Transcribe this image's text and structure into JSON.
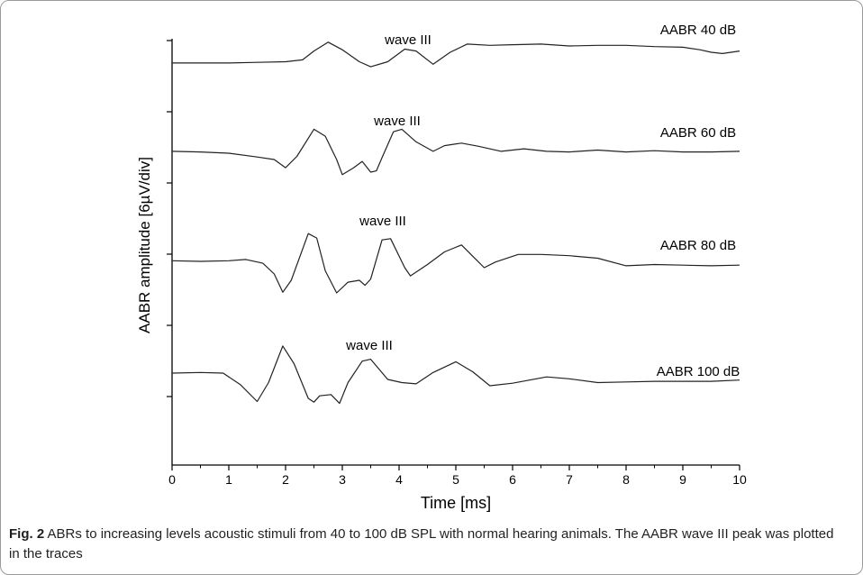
{
  "chart_data": {
    "type": "line",
    "xlabel": "Time [ms]",
    "ylabel": "AABR amplitude [6µV/div]",
    "xlim": [
      0,
      10
    ],
    "xticks": [
      "0",
      "1",
      "2",
      "3",
      "4",
      "5",
      "6",
      "7",
      "8",
      "9",
      "10"
    ],
    "grid": false,
    "legend": "none",
    "line_color": "#222222",
    "series": [
      {
        "name": "AABR 40 dB",
        "annotation": "wave III",
        "points": [
          [
            0,
            0.3
          ],
          [
            0.5,
            0.3
          ],
          [
            1,
            0.3
          ],
          [
            1.5,
            0.4
          ],
          [
            2,
            0.5
          ],
          [
            2.3,
            0.8
          ],
          [
            2.5,
            2.2
          ],
          [
            2.75,
            3.6
          ],
          [
            3,
            2.4
          ],
          [
            3.3,
            0.5
          ],
          [
            3.5,
            -0.3
          ],
          [
            3.8,
            0.5
          ],
          [
            4.1,
            2.5
          ],
          [
            4.3,
            2.2
          ],
          [
            4.6,
            0.1
          ],
          [
            4.9,
            2.0
          ],
          [
            5.2,
            3.3
          ],
          [
            5.6,
            3.1
          ],
          [
            6,
            3.2
          ],
          [
            6.5,
            3.3
          ],
          [
            7,
            3.0
          ],
          [
            7.5,
            3.1
          ],
          [
            8,
            3.1
          ],
          [
            8.5,
            2.9
          ],
          [
            9,
            2.8
          ],
          [
            9.3,
            2.4
          ],
          [
            9.5,
            2.0
          ],
          [
            9.7,
            1.8
          ],
          [
            10,
            2.2
          ]
        ]
      },
      {
        "name": "AABR 60 dB",
        "annotation": "wave III",
        "points": [
          [
            0,
            0.3
          ],
          [
            0.5,
            0.2
          ],
          [
            1,
            0
          ],
          [
            1.5,
            -0.6
          ],
          [
            1.8,
            -1.0
          ],
          [
            2.0,
            -2.3
          ],
          [
            2.2,
            -0.5
          ],
          [
            2.5,
            3.8
          ],
          [
            2.7,
            2.7
          ],
          [
            2.9,
            -1.0
          ],
          [
            3.0,
            -3.4
          ],
          [
            3.2,
            -2.3
          ],
          [
            3.35,
            -1.3
          ],
          [
            3.5,
            -3.0
          ],
          [
            3.6,
            -2.8
          ],
          [
            3.7,
            -0.7
          ],
          [
            3.9,
            3.4
          ],
          [
            4.05,
            3.8
          ],
          [
            4.3,
            1.8
          ],
          [
            4.6,
            0.3
          ],
          [
            4.8,
            1.2
          ],
          [
            5.1,
            1.6
          ],
          [
            5.4,
            1.1
          ],
          [
            5.8,
            0.3
          ],
          [
            6.2,
            0.7
          ],
          [
            6.6,
            0.3
          ],
          [
            7,
            0.2
          ],
          [
            7.5,
            0.5
          ],
          [
            8,
            0.2
          ],
          [
            8.5,
            0.4
          ],
          [
            9,
            0.2
          ],
          [
            9.5,
            0.2
          ],
          [
            10,
            0.3
          ]
        ]
      },
      {
        "name": "AABR 80 dB",
        "annotation": "wave III",
        "points": [
          [
            0,
            0.1
          ],
          [
            0.5,
            0
          ],
          [
            1,
            0.1
          ],
          [
            1.3,
            0.3
          ],
          [
            1.6,
            -0.3
          ],
          [
            1.8,
            -2.0
          ],
          [
            1.95,
            -4.9
          ],
          [
            2.1,
            -3.0
          ],
          [
            2.4,
            4.4
          ],
          [
            2.55,
            3.7
          ],
          [
            2.7,
            -1.5
          ],
          [
            2.9,
            -5.0
          ],
          [
            3.1,
            -3.3
          ],
          [
            3.3,
            -3.0
          ],
          [
            3.4,
            -3.8
          ],
          [
            3.5,
            -2.8
          ],
          [
            3.7,
            3.4
          ],
          [
            3.85,
            3.6
          ],
          [
            4.1,
            -1.0
          ],
          [
            4.2,
            -2.3
          ],
          [
            4.5,
            -0.5
          ],
          [
            4.8,
            1.5
          ],
          [
            5.1,
            2.6
          ],
          [
            5.3,
            0.8
          ],
          [
            5.5,
            -1.0
          ],
          [
            5.7,
            -0.1
          ],
          [
            6.1,
            1.1
          ],
          [
            6.5,
            1.1
          ],
          [
            7,
            0.9
          ],
          [
            7.5,
            0.5
          ],
          [
            8,
            -0.7
          ],
          [
            8.5,
            -0.5
          ],
          [
            9,
            -0.6
          ],
          [
            9.5,
            -0.7
          ],
          [
            10,
            -0.6
          ]
        ]
      },
      {
        "name": "AABR 100 dB",
        "annotation": "wave III",
        "points": [
          [
            0,
            0
          ],
          [
            0.5,
            0.1
          ],
          [
            0.9,
            0
          ],
          [
            1.2,
            -1.8
          ],
          [
            1.5,
            -4.5
          ],
          [
            1.7,
            -1.5
          ],
          [
            1.95,
            4.3
          ],
          [
            2.15,
            1.5
          ],
          [
            2.4,
            -4.0
          ],
          [
            2.5,
            -4.6
          ],
          [
            2.6,
            -3.6
          ],
          [
            2.8,
            -3.4
          ],
          [
            2.95,
            -4.8
          ],
          [
            3.1,
            -1.5
          ],
          [
            3.35,
            1.9
          ],
          [
            3.5,
            2.2
          ],
          [
            3.8,
            -1.0
          ],
          [
            4.05,
            -1.5
          ],
          [
            4.3,
            -1.7
          ],
          [
            4.6,
            0.1
          ],
          [
            5.0,
            1.8
          ],
          [
            5.3,
            0.2
          ],
          [
            5.6,
            -2.0
          ],
          [
            6.0,
            -1.6
          ],
          [
            6.6,
            -0.6
          ],
          [
            7.0,
            -0.9
          ],
          [
            7.5,
            -1.5
          ],
          [
            8,
            -1.4
          ],
          [
            8.5,
            -1.3
          ],
          [
            9,
            -1.3
          ],
          [
            9.5,
            -1.3
          ],
          [
            10,
            -1.1
          ]
        ]
      }
    ]
  },
  "caption": {
    "label": "Fig. 2",
    "text": "ABRs to increasing levels acoustic stimuli from 40 to 100 dB SPL with normal hearing animals. The AABR wave III peak was plotted in the traces"
  }
}
